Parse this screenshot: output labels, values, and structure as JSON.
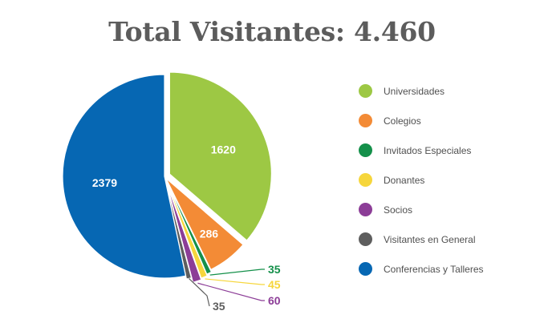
{
  "title": "Total Visitantes: 4.460",
  "chart_data": {
    "type": "pie",
    "title": "Total Visitantes: 4.460",
    "slices": [
      {
        "name": "Universidades",
        "value": 1620,
        "label": "1620",
        "color": "#9dc844"
      },
      {
        "name": "Colegios",
        "value": 286,
        "label": "286",
        "color": "#f38b36"
      },
      {
        "name": "Invitados Especiales",
        "value": 35,
        "label": "35",
        "color": "#14904a"
      },
      {
        "name": "Donantes",
        "value": 45,
        "label": "45",
        "color": "#f6d63c"
      },
      {
        "name": "Socios",
        "value": 60,
        "label": "60",
        "color": "#8c3d97"
      },
      {
        "name": "Visitantes en General",
        "value": 35,
        "label": "35",
        "color": "#5e5e5e"
      },
      {
        "name": "Conferencias y Talleres",
        "value": 2379,
        "label": "2379",
        "color": "#0667b3"
      }
    ],
    "legend_position": "right"
  }
}
